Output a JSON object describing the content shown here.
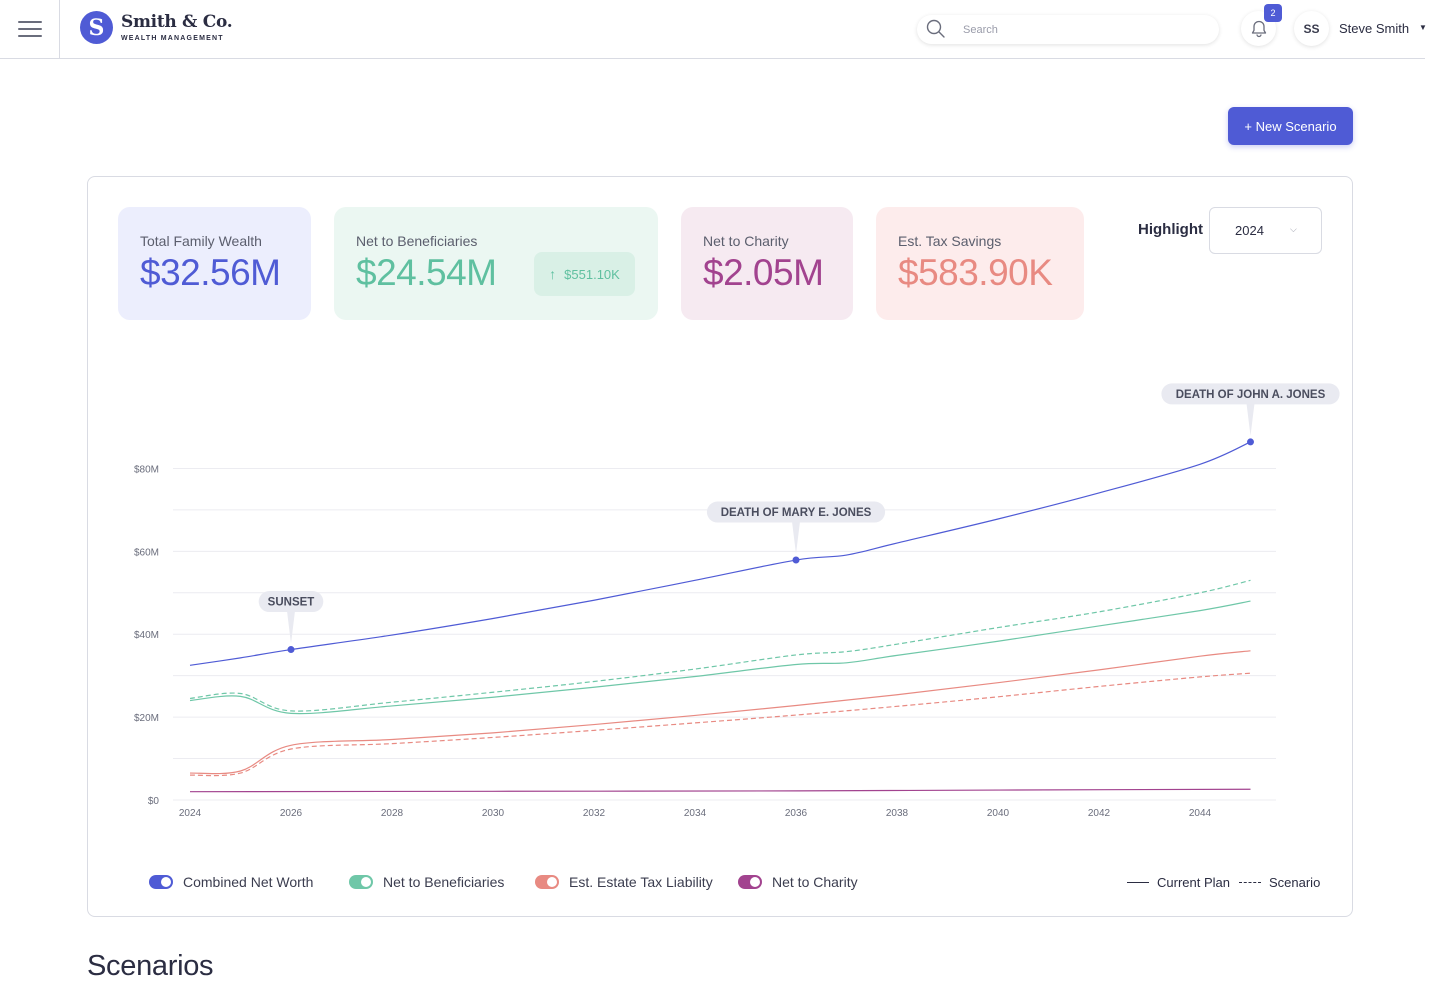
{
  "brand": {
    "initial": "S",
    "name": "Smith & Co.",
    "subtitle": "WEALTH MANAGEMENT",
    "color": "#4f5bd5"
  },
  "header": {
    "search_placeholder": "Search",
    "notifications_count": "2",
    "user_initials": "SS",
    "user_name": "Steve Smith",
    "icons": {
      "menu": "hamburger-icon",
      "search": "search-icon",
      "bell": "bell-icon",
      "caret": "caret-down-icon"
    }
  },
  "actions": {
    "new_scenario": "+ New Scenario"
  },
  "metrics": [
    {
      "label": "Total Family Wealth",
      "value": "$32.56M",
      "color": "#4f5bd5"
    },
    {
      "label": "Net to Beneficiaries",
      "value": "$24.54M",
      "delta": "$551.10K",
      "color": "#5fc0a0"
    },
    {
      "label": "Net to Charity",
      "value": "$2.05M",
      "color": "#a2438f"
    },
    {
      "label": "Est. Tax Savings",
      "value": "$583.90K",
      "color": "#e88a82"
    }
  ],
  "highlight": {
    "label": "Highlight",
    "selected": "2024"
  },
  "chart_data": {
    "type": "line",
    "x_ticks": [
      "2024",
      "2026",
      "2028",
      "2030",
      "2032",
      "2034",
      "2036",
      "2038",
      "2040",
      "2042",
      "2044"
    ],
    "y_ticks": [
      "$0",
      "$20M",
      "$40M",
      "$60M",
      "$80M"
    ],
    "ylim": [
      0,
      90
    ],
    "xlim": [
      2024,
      2045
    ],
    "grid": true,
    "series": [
      {
        "name": "Combined Net Worth",
        "variant": "Current Plan",
        "color": "#4f5bd5",
        "points": [
          [
            2024,
            32.5
          ],
          [
            2025,
            34.3
          ],
          [
            2026,
            36.3
          ],
          [
            2028,
            39.8
          ],
          [
            2030,
            43.8
          ],
          [
            2032,
            48.2
          ],
          [
            2034,
            53.0
          ],
          [
            2036,
            57.9
          ],
          [
            2037,
            59.1
          ],
          [
            2038,
            62.0
          ],
          [
            2040,
            67.8
          ],
          [
            2042,
            74.1
          ],
          [
            2044,
            81.0
          ],
          [
            2045,
            86.4
          ]
        ]
      },
      {
        "name": "Net to Beneficiaries",
        "variant": "Current Plan",
        "color": "#6fc7a8",
        "points": [
          [
            2024,
            24.0
          ],
          [
            2025,
            25.0
          ],
          [
            2026,
            20.9
          ],
          [
            2028,
            22.7
          ],
          [
            2030,
            24.8
          ],
          [
            2032,
            27.2
          ],
          [
            2034,
            29.8
          ],
          [
            2036,
            32.7
          ],
          [
            2037,
            33.1
          ],
          [
            2038,
            34.9
          ],
          [
            2040,
            38.3
          ],
          [
            2042,
            42.0
          ],
          [
            2044,
            45.7
          ],
          [
            2045,
            48.0
          ]
        ]
      },
      {
        "name": "Net to Beneficiaries",
        "variant": "Scenario",
        "color": "#6fc7a8",
        "points": [
          [
            2024,
            24.5
          ],
          [
            2025,
            25.7
          ],
          [
            2026,
            21.5
          ],
          [
            2028,
            23.6
          ],
          [
            2030,
            26.0
          ],
          [
            2032,
            28.6
          ],
          [
            2034,
            31.6
          ],
          [
            2036,
            35.0
          ],
          [
            2037,
            35.8
          ],
          [
            2038,
            37.6
          ],
          [
            2040,
            41.6
          ],
          [
            2042,
            45.4
          ],
          [
            2044,
            50.0
          ],
          [
            2045,
            53.0
          ]
        ]
      },
      {
        "name": "Est. Estate Tax Liability",
        "variant": "Current Plan",
        "color": "#e88a82",
        "points": [
          [
            2024,
            6.5
          ],
          [
            2025,
            7.0
          ],
          [
            2026,
            13.2
          ],
          [
            2028,
            14.6
          ],
          [
            2030,
            16.2
          ],
          [
            2032,
            18.2
          ],
          [
            2034,
            20.4
          ],
          [
            2036,
            22.8
          ],
          [
            2038,
            25.4
          ],
          [
            2040,
            28.3
          ],
          [
            2042,
            31.4
          ],
          [
            2044,
            34.7
          ],
          [
            2045,
            36.0
          ]
        ]
      },
      {
        "name": "Est. Estate Tax Liability",
        "variant": "Scenario",
        "color": "#e88a82",
        "points": [
          [
            2024,
            6.0
          ],
          [
            2025,
            6.5
          ],
          [
            2026,
            12.3
          ],
          [
            2028,
            13.6
          ],
          [
            2030,
            15.1
          ],
          [
            2032,
            16.8
          ],
          [
            2034,
            18.6
          ],
          [
            2036,
            20.5
          ],
          [
            2038,
            22.6
          ],
          [
            2040,
            24.9
          ],
          [
            2042,
            27.4
          ],
          [
            2044,
            29.7
          ],
          [
            2045,
            30.6
          ]
        ]
      },
      {
        "name": "Net to Charity",
        "variant": "Current Plan",
        "color": "#a2438f",
        "points": [
          [
            2024,
            2.0
          ],
          [
            2030,
            2.1
          ],
          [
            2036,
            2.2
          ],
          [
            2040,
            2.4
          ],
          [
            2045,
            2.6
          ]
        ]
      }
    ],
    "annotations": [
      {
        "label": "SUNSET",
        "x": 2026,
        "y": 36.3
      },
      {
        "label": "DEATH OF MARY E. JONES",
        "x": 2036,
        "y": 57.9
      },
      {
        "label": "DEATH OF JOHN A. JONES",
        "x": 2045,
        "y": 86.4
      }
    ]
  },
  "legend": {
    "items": [
      "Combined Net Worth",
      "Net to Beneficiaries",
      "Est. Estate Tax Liability",
      "Net to Charity"
    ],
    "current_plan": "Current Plan",
    "scenario": "Scenario"
  },
  "section": {
    "title": "Scenarios"
  }
}
